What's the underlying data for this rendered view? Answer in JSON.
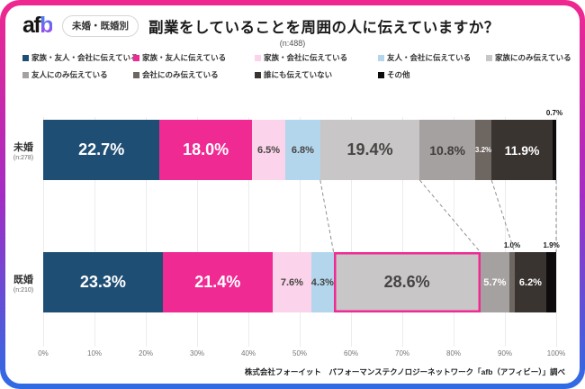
{
  "header": {
    "logo_af": "af",
    "logo_b": "b",
    "badge": "未婚・既婚別",
    "title": "副業をしていることを周囲の人に伝えていますか？",
    "sample": "(n:488)"
  },
  "footer": {
    "source": "株式会社フォーイット　パフォーマンステクノロジーネットワーク「afb（アフィビー）」調べ"
  },
  "colors": {
    "border_gradient_top": "#f0278f",
    "border_gradient_mid": "#a42cc4",
    "border_gradient_bottom": "#2e6ce4",
    "highlight_border": "#ef2a93",
    "gridline": "#ececec",
    "connector": "#8f8f8f"
  },
  "chart_data": {
    "type": "bar",
    "stacked": true,
    "orientation": "horizontal",
    "unit": "%",
    "xlim": [
      0,
      100
    ],
    "xticks": [
      "0%",
      "10%",
      "20%",
      "30%",
      "40%",
      "50%",
      "60%",
      "70%",
      "80%",
      "90%",
      "100%"
    ],
    "legend_position": "top",
    "grid": true,
    "categories": [
      {
        "label": "未婚",
        "n": "(n:278)"
      },
      {
        "label": "既婚",
        "n": "(n:210)"
      }
    ],
    "series": [
      {
        "name": "家族・友人・会社に伝えている",
        "color": "#1f4e74",
        "values": [
          22.7,
          23.3
        ],
        "labels": [
          "22.7%",
          "23.3%"
        ],
        "text_colors": [
          "#ffffff",
          "#ffffff"
        ]
      },
      {
        "name": "家族・友人に伝えている",
        "color": "#ef2a93",
        "values": [
          18.0,
          21.4
        ],
        "labels": [
          "18.0%",
          "21.4%"
        ],
        "text_colors": [
          "#ffffff",
          "#ffffff"
        ]
      },
      {
        "name": "家族・会社に伝えている",
        "color": "#fbd3ea",
        "values": [
          6.5,
          7.6
        ],
        "labels": [
          "6.5%",
          "7.6%"
        ],
        "text_colors": [
          "#474443",
          "#474443"
        ]
      },
      {
        "name": "友人・会社に伝えている",
        "color": "#b3d6ec",
        "values": [
          6.8,
          4.3
        ],
        "labels": [
          "6.8%",
          "4.3%"
        ],
        "text_colors": [
          "#474443",
          "#474443"
        ]
      },
      {
        "name": "家族にのみ伝えている",
        "color": "#c9c6c7",
        "values": [
          19.4,
          28.6
        ],
        "labels": [
          "19.4%",
          "28.6%"
        ],
        "text_colors": [
          "#474443",
          "#474443"
        ]
      },
      {
        "name": "友人にのみ伝えている",
        "color": "#a5a1a0",
        "values": [
          10.8,
          5.7
        ],
        "labels": [
          "10.8%",
          "5.7%"
        ],
        "text_colors": [
          "#413d3c",
          "#ffffff"
        ]
      },
      {
        "name": "会社にのみ伝えている",
        "color": "#6e6661",
        "values": [
          3.2,
          1.0
        ],
        "labels": [
          "3.2%",
          "1.0%"
        ],
        "text_colors": [
          "#ffffff",
          "#111111"
        ]
      },
      {
        "name": "誰にも伝えていない",
        "color": "#3a3431",
        "values": [
          11.9,
          6.2
        ],
        "labels": [
          "11.9%",
          "6.2%"
        ],
        "text_colors": [
          "#ffffff",
          "#ffffff"
        ]
      },
      {
        "name": "その他",
        "color": "#0d0b0b",
        "values": [
          0.7,
          1.9
        ],
        "labels": [
          "0.7%",
          "1.9%"
        ],
        "text_colors": [
          "#111111",
          "#111111"
        ]
      }
    ],
    "highlight": {
      "bar_index": 1,
      "segment_index": 4
    },
    "connector_boundaries": [
      4,
      5,
      7,
      9
    ]
  }
}
